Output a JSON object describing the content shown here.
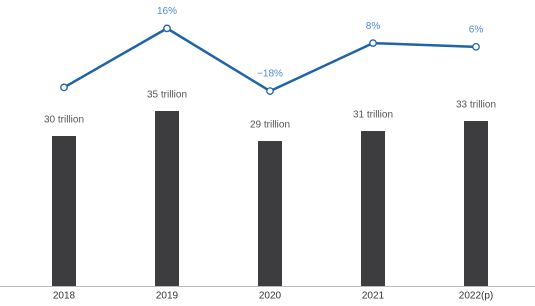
{
  "chart_data": {
    "type": "bar",
    "categories": [
      "2018",
      "2019",
      "2020",
      "2021",
      "2022(p)"
    ],
    "series": [
      {
        "type": "bar",
        "color": "#3d3d3f",
        "values": [
          30,
          35,
          29,
          31,
          33
        ],
        "value_labels": [
          "30 trillion",
          "35 trillion",
          "29 trillion",
          "31 trillion",
          "33 trillion"
        ]
      },
      {
        "type": "line",
        "axis": "y2",
        "color": "#1f63a8",
        "values": [
          -16,
          16,
          -18,
          8,
          6
        ],
        "value_labels": [
          null,
          "16%",
          "−18%",
          "8%",
          "6%"
        ]
      }
    ],
    "ylim": [
      0,
      56
    ],
    "y2lim": [
      -25,
      20
    ]
  }
}
